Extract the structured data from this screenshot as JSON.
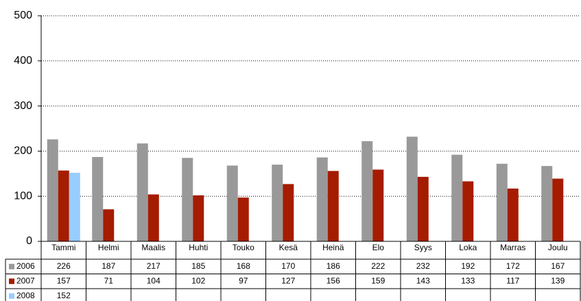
{
  "chart_data": {
    "type": "bar",
    "categories": [
      "Tammi",
      "Helmi",
      "Maalis",
      "Huhti",
      "Touko",
      "Kesä",
      "Heinä",
      "Elo",
      "Syys",
      "Loka",
      "Marras",
      "Joulu"
    ],
    "series": [
      {
        "name": "2006",
        "color": "#999999",
        "values": [
          226,
          187,
          217,
          185,
          168,
          170,
          186,
          222,
          232,
          192,
          172,
          167
        ]
      },
      {
        "name": "2007",
        "color": "#a51c00",
        "values": [
          157,
          71,
          104,
          102,
          97,
          127,
          156,
          159,
          143,
          133,
          117,
          139
        ]
      },
      {
        "name": "2008",
        "color": "#99ccff",
        "values": [
          152,
          null,
          null,
          null,
          null,
          null,
          null,
          null,
          null,
          null,
          null,
          null
        ]
      }
    ],
    "ylim": [
      0,
      500
    ],
    "yticks": [
      0,
      100,
      200,
      300,
      400,
      500
    ],
    "grid": true
  }
}
